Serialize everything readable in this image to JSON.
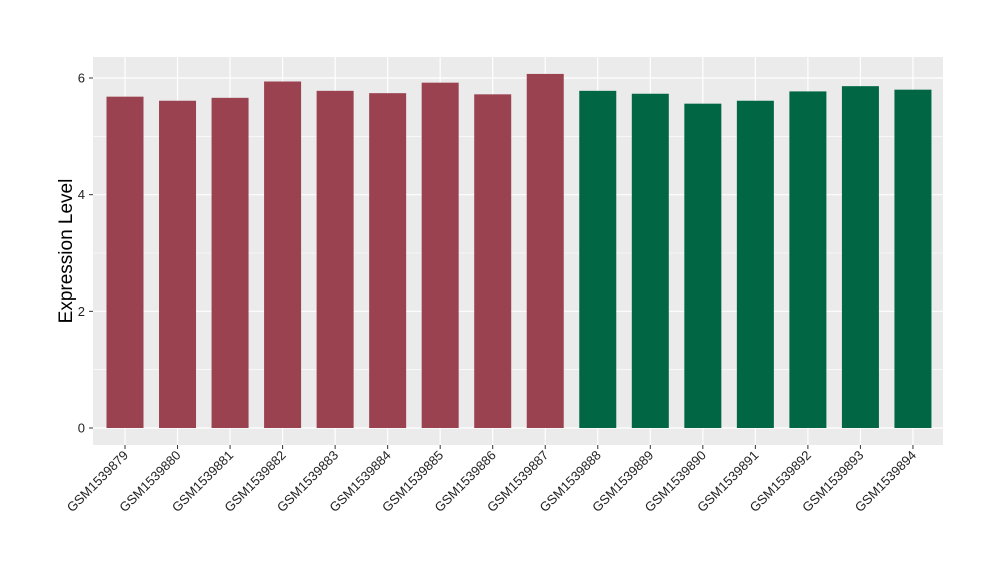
{
  "chart_data": {
    "type": "bar",
    "title": "",
    "xlabel": "",
    "ylabel": "Expression Level",
    "ylim": [
      0,
      6.3
    ],
    "yticks": [
      0,
      2,
      4,
      6
    ],
    "grid": true,
    "legend": "none",
    "colors": {
      "group_a": "#9A4250",
      "group_b": "#016644",
      "panel_background": "#EBEBEB",
      "gridline": "#FFFFFF"
    },
    "categories": [
      "GSM1539879",
      "GSM1539880",
      "GSM1539881",
      "GSM1539882",
      "GSM1539883",
      "GSM1539884",
      "GSM1539885",
      "GSM1539886",
      "GSM1539887",
      "GSM1539888",
      "GSM1539889",
      "GSM1539890",
      "GSM1539891",
      "GSM1539892",
      "GSM1539893",
      "GSM1539894"
    ],
    "values": [
      5.68,
      5.61,
      5.66,
      5.94,
      5.78,
      5.74,
      5.92,
      5.72,
      6.07,
      5.78,
      5.73,
      5.56,
      5.61,
      5.77,
      5.86,
      5.8
    ],
    "bar_groups": [
      "group_a",
      "group_a",
      "group_a",
      "group_a",
      "group_a",
      "group_a",
      "group_a",
      "group_a",
      "group_a",
      "group_b",
      "group_b",
      "group_b",
      "group_b",
      "group_b",
      "group_b",
      "group_b"
    ]
  }
}
